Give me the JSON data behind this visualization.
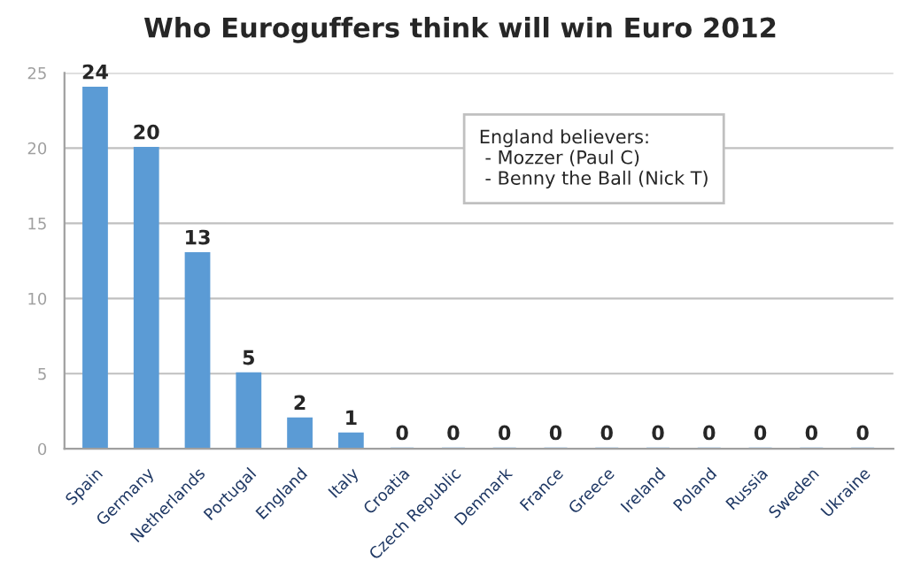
{
  "chart_data": {
    "type": "bar",
    "title": "Who Euroguffers think will win Euro 2012",
    "categories": [
      "Spain",
      "Germany",
      "Netherlands",
      "Portugal",
      "England",
      "Italy",
      "Croatia",
      "Czech Republic",
      "Denmark",
      "France",
      "Greece",
      "Ireland",
      "Poland",
      "Russia",
      "Sweden",
      "Ukraine"
    ],
    "values": [
      24,
      20,
      13,
      5,
      2,
      1,
      0,
      0,
      0,
      0,
      0,
      0,
      0,
      0,
      0,
      0
    ],
    "color": "#5b9bd5",
    "ylim": [
      0,
      25
    ],
    "yticks": [
      0,
      5,
      10,
      15,
      20,
      25
    ],
    "grid": "y",
    "data_labels": true,
    "annotations": [
      "England believers:\n - Mozzer (Paul C)\n - Benny the Ball (Nick T)"
    ]
  }
}
